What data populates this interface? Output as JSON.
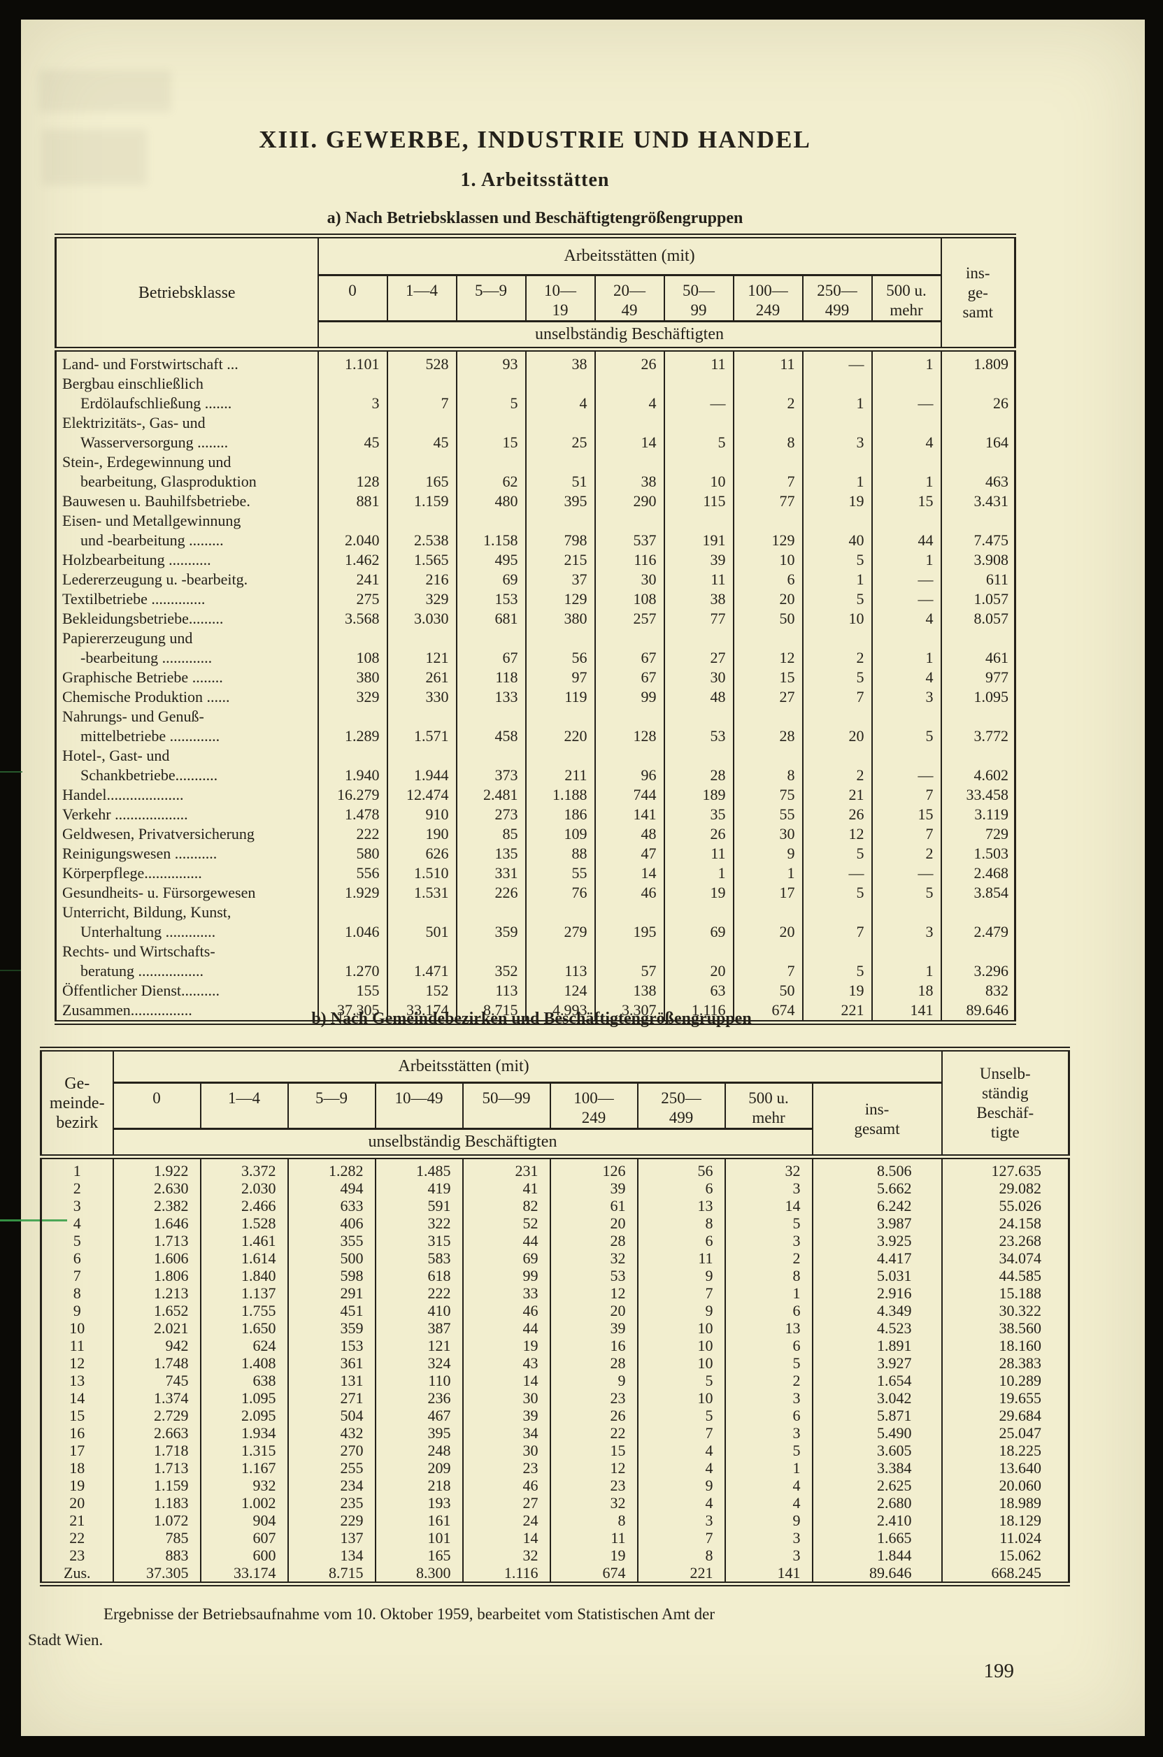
{
  "page": {
    "title": "XIII. GEWERBE, INDUSTRIE UND HANDEL",
    "subtitle": "1. Arbeitsstätten",
    "footnote": "Ergebnisse der Betriebsaufnahme vom 10. Oktober 1959, bearbeitet vom Statistischen Amt der\nStadt Wien.",
    "page_number": "199"
  },
  "colors": {
    "paper": "#f2eecf",
    "ink": "#24211a",
    "scan_border": "#0b0a06",
    "artifact_green": "#3aa04a"
  },
  "table_a": {
    "caption": "a) Nach Betriebsklassen und Beschäftigtengrößengruppen",
    "corner_header": "Betriebsklasse",
    "group_header": "Arbeitsstätten (mit)",
    "sub_header": "unselbständig Beschäftigten",
    "total_header": "ins-\nge-\nsamt",
    "size_headers": [
      "0",
      "1—4",
      "5—9",
      "10—\n19",
      "20—\n49",
      "50—\n99",
      "100—\n249",
      "250—\n499",
      "500 u.\nmehr"
    ],
    "rows": [
      {
        "label": "Land- und Forstwirtschaft ...",
        "cells": [
          "1.101",
          "528",
          "93",
          "38",
          "26",
          "11",
          "11",
          "—",
          "1",
          "1.809"
        ]
      },
      {
        "label": "Bergbau einschließlich\nErdölaufschließung .......",
        "cells": [
          "3",
          "7",
          "5",
          "4",
          "4",
          "—",
          "2",
          "1",
          "—",
          "26"
        ]
      },
      {
        "label": "Elektrizitäts-, Gas- und\nWasserversorgung ........",
        "cells": [
          "45",
          "45",
          "15",
          "25",
          "14",
          "5",
          "8",
          "3",
          "4",
          "164"
        ]
      },
      {
        "label": "Stein-, Erdegewinnung und\nbearbeitung, Glasproduktion",
        "cells": [
          "128",
          "165",
          "62",
          "51",
          "38",
          "10",
          "7",
          "1",
          "1",
          "463"
        ]
      },
      {
        "label": "Bauwesen u. Bauhilfsbetriebe.",
        "cells": [
          "881",
          "1.159",
          "480",
          "395",
          "290",
          "115",
          "77",
          "19",
          "15",
          "3.431"
        ]
      },
      {
        "label": "Eisen- und Metallgewinnung\nund -bearbeitung .........",
        "cells": [
          "2.040",
          "2.538",
          "1.158",
          "798",
          "537",
          "191",
          "129",
          "40",
          "44",
          "7.475"
        ]
      },
      {
        "label": "Holzbearbeitung ...........",
        "cells": [
          "1.462",
          "1.565",
          "495",
          "215",
          "116",
          "39",
          "10",
          "5",
          "1",
          "3.908"
        ]
      },
      {
        "label": "Ledererzeugung u. -bearbeitg.",
        "cells": [
          "241",
          "216",
          "69",
          "37",
          "30",
          "11",
          "6",
          "1",
          "—",
          "611"
        ]
      },
      {
        "label": "Textilbetriebe ..............",
        "cells": [
          "275",
          "329",
          "153",
          "129",
          "108",
          "38",
          "20",
          "5",
          "—",
          "1.057"
        ]
      },
      {
        "label": "Bekleidungsbetriebe.........",
        "cells": [
          "3.568",
          "3.030",
          "681",
          "380",
          "257",
          "77",
          "50",
          "10",
          "4",
          "8.057"
        ]
      },
      {
        "label": "Papiererzeugung und\n-bearbeitung .............",
        "cells": [
          "108",
          "121",
          "67",
          "56",
          "67",
          "27",
          "12",
          "2",
          "1",
          "461"
        ]
      },
      {
        "label": "Graphische Betriebe ........",
        "cells": [
          "380",
          "261",
          "118",
          "97",
          "67",
          "30",
          "15",
          "5",
          "4",
          "977"
        ]
      },
      {
        "label": "Chemische Produktion ......",
        "cells": [
          "329",
          "330",
          "133",
          "119",
          "99",
          "48",
          "27",
          "7",
          "3",
          "1.095"
        ]
      },
      {
        "label": "Nahrungs- und Genuß-\nmittelbetriebe .............",
        "cells": [
          "1.289",
          "1.571",
          "458",
          "220",
          "128",
          "53",
          "28",
          "20",
          "5",
          "3.772"
        ]
      },
      {
        "label": "Hotel-, Gast- und\nSchankbetriebe...........",
        "cells": [
          "1.940",
          "1.944",
          "373",
          "211",
          "96",
          "28",
          "8",
          "2",
          "—",
          "4.602"
        ]
      },
      {
        "label": "Handel....................",
        "cells": [
          "16.279",
          "12.474",
          "2.481",
          "1.188",
          "744",
          "189",
          "75",
          "21",
          "7",
          "33.458"
        ]
      },
      {
        "label": "Verkehr ...................",
        "cells": [
          "1.478",
          "910",
          "273",
          "186",
          "141",
          "35",
          "55",
          "26",
          "15",
          "3.119"
        ]
      },
      {
        "label": "Geldwesen, Privatversicherung",
        "cells": [
          "222",
          "190",
          "85",
          "109",
          "48",
          "26",
          "30",
          "12",
          "7",
          "729"
        ]
      },
      {
        "label": "Reinigungswesen ...........",
        "cells": [
          "580",
          "626",
          "135",
          "88",
          "47",
          "11",
          "9",
          "5",
          "2",
          "1.503"
        ]
      },
      {
        "label": "Körperpflege...............",
        "cells": [
          "556",
          "1.510",
          "331",
          "55",
          "14",
          "1",
          "1",
          "—",
          "—",
          "2.468"
        ]
      },
      {
        "label": "Gesundheits- u. Fürsorgewesen",
        "cells": [
          "1.929",
          "1.531",
          "226",
          "76",
          "46",
          "19",
          "17",
          "5",
          "5",
          "3.854"
        ]
      },
      {
        "label": "Unterricht, Bildung, Kunst,\nUnterhaltung .............",
        "cells": [
          "1.046",
          "501",
          "359",
          "279",
          "195",
          "69",
          "20",
          "7",
          "3",
          "2.479"
        ]
      },
      {
        "label": "Rechts- und Wirtschafts-\nberatung .................",
        "cells": [
          "1.270",
          "1.471",
          "352",
          "113",
          "57",
          "20",
          "7",
          "5",
          "1",
          "3.296"
        ]
      },
      {
        "label": "Öffentlicher Dienst..........",
        "cells": [
          "155",
          "152",
          "113",
          "124",
          "138",
          "63",
          "50",
          "19",
          "18",
          "832"
        ]
      },
      {
        "label": "Zusammen................",
        "cells": [
          "37.305",
          "33.174",
          "8.715",
          "4.993",
          "3.307",
          "1.116",
          "674",
          "221",
          "141",
          "89.646"
        ]
      }
    ]
  },
  "table_b": {
    "caption": "b) Nach Gemeindebezirken und Beschäftigtengrößengruppen",
    "corner_header": "Ge-\nmeinde-\nbezirk",
    "group_header": "Arbeitsstätten (mit)",
    "sub_header": "unselbständig Beschäftigten",
    "insgesamt_header": "ins-\ngesamt",
    "employees_header": "Unselb-\nständig\nBeschäf-\ntigte",
    "size_headers": [
      "0",
      "1—4",
      "5—9",
      "10—49",
      "50—99",
      "100—\n249",
      "250—\n499",
      "500 u.\nmehr"
    ],
    "rows": [
      {
        "bezirk": "1",
        "cells": [
          "1.922",
          "3.372",
          "1.282",
          "1.485",
          "231",
          "126",
          "56",
          "32",
          "8.506",
          "127.635"
        ]
      },
      {
        "bezirk": "2",
        "cells": [
          "2.630",
          "2.030",
          "494",
          "419",
          "41",
          "39",
          "6",
          "3",
          "5.662",
          "29.082"
        ]
      },
      {
        "bezirk": "3",
        "cells": [
          "2.382",
          "2.466",
          "633",
          "591",
          "82",
          "61",
          "13",
          "14",
          "6.242",
          "55.026"
        ]
      },
      {
        "bezirk": "4",
        "cells": [
          "1.646",
          "1.528",
          "406",
          "322",
          "52",
          "20",
          "8",
          "5",
          "3.987",
          "24.158"
        ]
      },
      {
        "bezirk": "5",
        "cells": [
          "1.713",
          "1.461",
          "355",
          "315",
          "44",
          "28",
          "6",
          "3",
          "3.925",
          "23.268"
        ]
      },
      {
        "bezirk": "6",
        "cells": [
          "1.606",
          "1.614",
          "500",
          "583",
          "69",
          "32",
          "11",
          "2",
          "4.417",
          "34.074"
        ]
      },
      {
        "bezirk": "7",
        "cells": [
          "1.806",
          "1.840",
          "598",
          "618",
          "99",
          "53",
          "9",
          "8",
          "5.031",
          "44.585"
        ]
      },
      {
        "bezirk": "8",
        "cells": [
          "1.213",
          "1.137",
          "291",
          "222",
          "33",
          "12",
          "7",
          "1",
          "2.916",
          "15.188"
        ]
      },
      {
        "bezirk": "9",
        "cells": [
          "1.652",
          "1.755",
          "451",
          "410",
          "46",
          "20",
          "9",
          "6",
          "4.349",
          "30.322"
        ]
      },
      {
        "bezirk": "10",
        "cells": [
          "2.021",
          "1.650",
          "359",
          "387",
          "44",
          "39",
          "10",
          "13",
          "4.523",
          "38.560"
        ]
      },
      {
        "bezirk": "11",
        "cells": [
          "942",
          "624",
          "153",
          "121",
          "19",
          "16",
          "10",
          "6",
          "1.891",
          "18.160"
        ]
      },
      {
        "bezirk": "12",
        "cells": [
          "1.748",
          "1.408",
          "361",
          "324",
          "43",
          "28",
          "10",
          "5",
          "3.927",
          "28.383"
        ]
      },
      {
        "bezirk": "13",
        "cells": [
          "745",
          "638",
          "131",
          "110",
          "14",
          "9",
          "5",
          "2",
          "1.654",
          "10.289"
        ]
      },
      {
        "bezirk": "14",
        "cells": [
          "1.374",
          "1.095",
          "271",
          "236",
          "30",
          "23",
          "10",
          "3",
          "3.042",
          "19.655"
        ]
      },
      {
        "bezirk": "15",
        "cells": [
          "2.729",
          "2.095",
          "504",
          "467",
          "39",
          "26",
          "5",
          "6",
          "5.871",
          "29.684"
        ]
      },
      {
        "bezirk": "16",
        "cells": [
          "2.663",
          "1.934",
          "432",
          "395",
          "34",
          "22",
          "7",
          "3",
          "5.490",
          "25.047"
        ]
      },
      {
        "bezirk": "17",
        "cells": [
          "1.718",
          "1.315",
          "270",
          "248",
          "30",
          "15",
          "4",
          "5",
          "3.605",
          "18.225"
        ]
      },
      {
        "bezirk": "18",
        "cells": [
          "1.713",
          "1.167",
          "255",
          "209",
          "23",
          "12",
          "4",
          "1",
          "3.384",
          "13.640"
        ]
      },
      {
        "bezirk": "19",
        "cells": [
          "1.159",
          "932",
          "234",
          "218",
          "46",
          "23",
          "9",
          "4",
          "2.625",
          "20.060"
        ]
      },
      {
        "bezirk": "20",
        "cells": [
          "1.183",
          "1.002",
          "235",
          "193",
          "27",
          "32",
          "4",
          "4",
          "2.680",
          "18.989"
        ]
      },
      {
        "bezirk": "21",
        "cells": [
          "1.072",
          "904",
          "229",
          "161",
          "24",
          "8",
          "3",
          "9",
          "2.410",
          "18.129"
        ]
      },
      {
        "bezirk": "22",
        "cells": [
          "785",
          "607",
          "137",
          "101",
          "14",
          "11",
          "7",
          "3",
          "1.665",
          "11.024"
        ]
      },
      {
        "bezirk": "23",
        "cells": [
          "883",
          "600",
          "134",
          "165",
          "32",
          "19",
          "8",
          "3",
          "1.844",
          "15.062"
        ]
      },
      {
        "bezirk": "Zus.",
        "cells": [
          "37.305",
          "33.174",
          "8.715",
          "8.300",
          "1.116",
          "674",
          "221",
          "141",
          "89.646",
          "668.245"
        ]
      }
    ]
  }
}
